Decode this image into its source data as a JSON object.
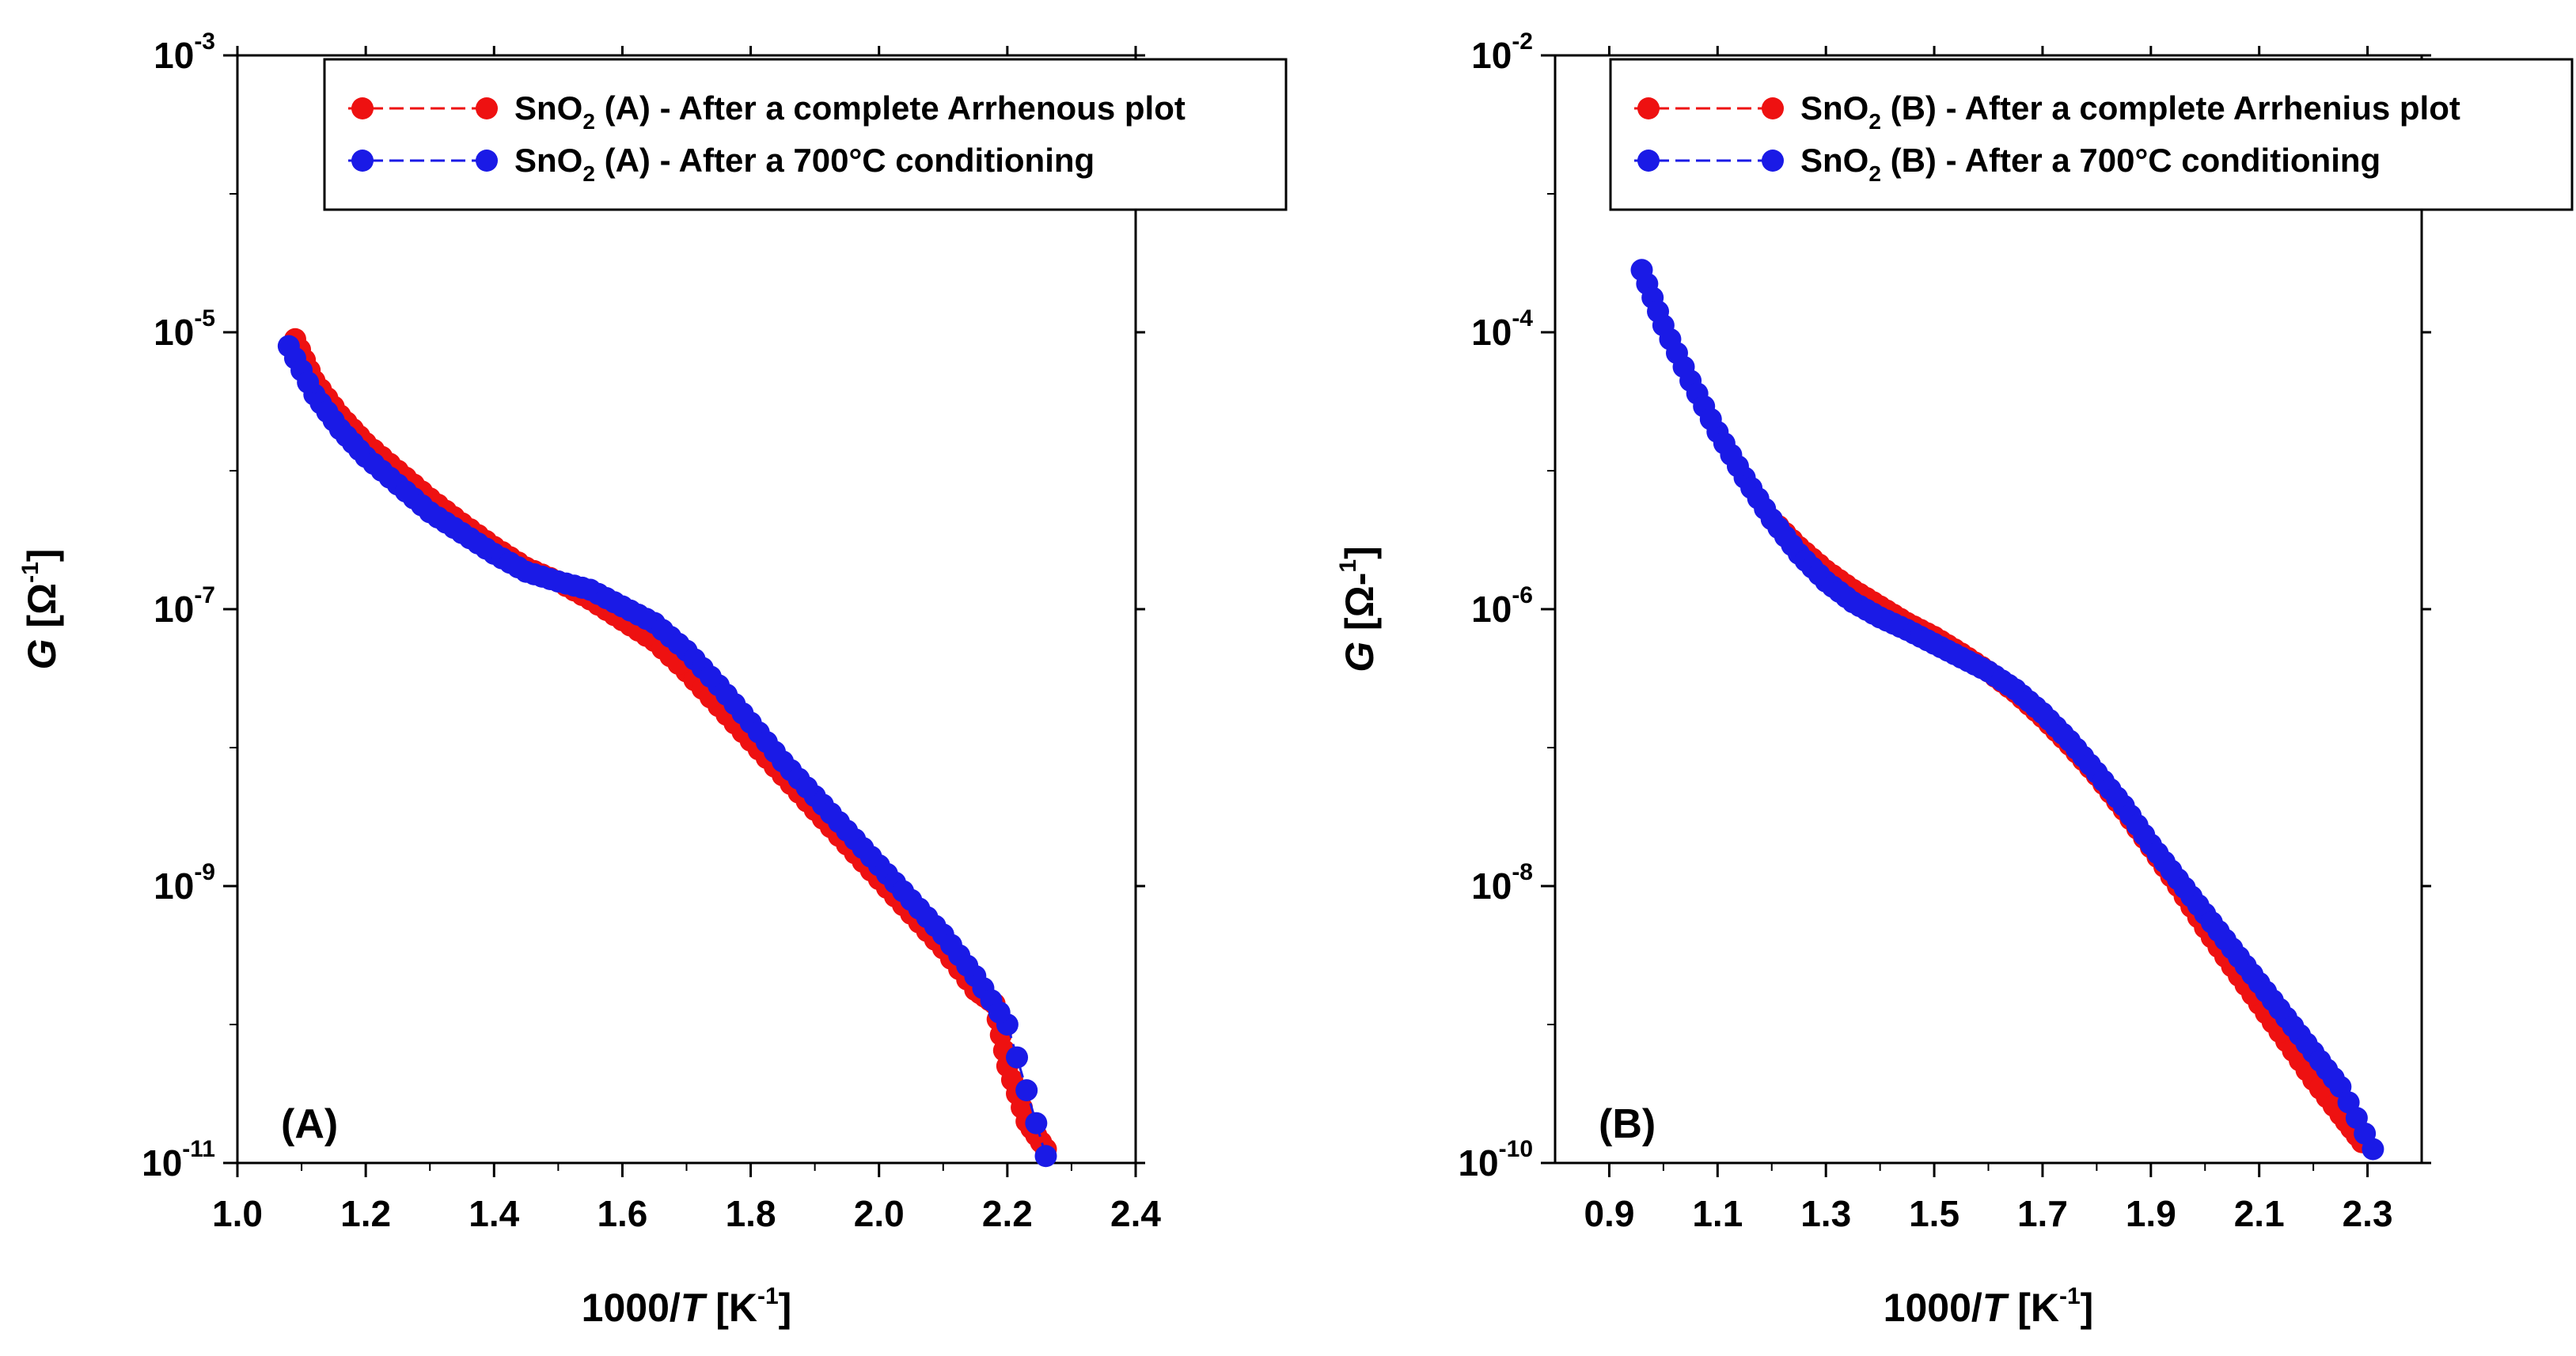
{
  "chart_data": [
    {
      "type": "scatter",
      "panel_label": "(A)",
      "xlabel_prefix": "1000/",
      "xlabel_var": "T",
      "xlabel_unit_open": " [K",
      "xlabel_unit_sup": "-1",
      "xlabel_unit_close": "]",
      "ylabel_var": "G",
      "ylabel_unit_open": " [Ω",
      "ylabel_unit_sup": "-1",
      "ylabel_unit_close": "]",
      "xlim": [
        1.0,
        2.4
      ],
      "ylim_log10": [
        -11,
        -3
      ],
      "x_ticks": [
        1.0,
        1.2,
        1.4,
        1.6,
        1.8,
        2.0,
        2.2,
        2.4
      ],
      "x_tick_labels": [
        "1.0",
        "1.2",
        "1.4",
        "1.6",
        "1.8",
        "2.0",
        "2.2",
        "2.4"
      ],
      "y_ticks_log10": [
        -11,
        -9,
        -7,
        -5,
        -3
      ],
      "y_tick_labels": [
        {
          "base": "10",
          "exp": "-11"
        },
        {
          "base": "10",
          "exp": "-9"
        },
        {
          "base": "10",
          "exp": "-7"
        },
        {
          "base": "10",
          "exp": "-5"
        },
        {
          "base": "10",
          "exp": "-3"
        }
      ],
      "legend_position": "top-right",
      "series": [
        {
          "name_parts": [
            "SnO",
            "2",
            " (A) - After a complete Arrhenous plot"
          ],
          "color": "#ee1111",
          "x": [
            1.09,
            1.12,
            1.16,
            1.2,
            1.25,
            1.3,
            1.35,
            1.4,
            1.45,
            1.5,
            1.55,
            1.6,
            1.65,
            1.7,
            1.75,
            1.8,
            1.85,
            1.9,
            1.95,
            2.0,
            2.05,
            2.1,
            2.15,
            2.18,
            2.2,
            2.23,
            2.26
          ],
          "log10_y": [
            -5.05,
            -5.35,
            -5.6,
            -5.8,
            -6.0,
            -6.2,
            -6.38,
            -6.55,
            -6.7,
            -6.8,
            -6.93,
            -7.08,
            -7.23,
            -7.45,
            -7.7,
            -7.95,
            -8.2,
            -8.45,
            -8.7,
            -8.95,
            -9.2,
            -9.45,
            -9.75,
            -9.85,
            -10.3,
            -10.7,
            -10.9
          ]
        },
        {
          "name_parts": [
            "SnO",
            "2",
            " (A) - After a 700°C conditioning"
          ],
          "color": "#1a1ae6",
          "x": [
            1.08,
            1.12,
            1.16,
            1.2,
            1.25,
            1.3,
            1.35,
            1.4,
            1.45,
            1.5,
            1.55,
            1.6,
            1.65,
            1.7,
            1.75,
            1.8,
            1.85,
            1.9,
            1.95,
            2.0,
            2.05,
            2.1,
            2.15,
            2.2,
            2.26
          ],
          "log10_y": [
            -5.1,
            -5.45,
            -5.7,
            -5.9,
            -6.1,
            -6.3,
            -6.45,
            -6.6,
            -6.73,
            -6.8,
            -6.86,
            -6.98,
            -7.1,
            -7.3,
            -7.55,
            -7.82,
            -8.1,
            -8.35,
            -8.6,
            -8.85,
            -9.1,
            -9.35,
            -9.65,
            -10.0,
            -10.95
          ]
        }
      ]
    },
    {
      "type": "scatter",
      "panel_label": "(B)",
      "xlabel_prefix": "1000/",
      "xlabel_var": "T",
      "xlabel_unit_open": " [K",
      "xlabel_unit_sup": "-1",
      "xlabel_unit_close": "]",
      "ylabel_var": "G",
      "ylabel_unit_open": " [Ω-",
      "ylabel_unit_sup": "1",
      "ylabel_unit_close": "]",
      "xlim": [
        0.8,
        2.4
      ],
      "ylim_log10": [
        -10,
        -2
      ],
      "x_ticks": [
        0.9,
        1.1,
        1.3,
        1.5,
        1.7,
        1.9,
        2.1,
        2.3
      ],
      "x_tick_labels": [
        "0.9",
        "1.1",
        "1.3",
        "1.5",
        "1.7",
        "1.9",
        "2.1",
        "2.3"
      ],
      "y_ticks_log10": [
        -10,
        -8,
        -6,
        -4,
        -2
      ],
      "y_tick_labels": [
        {
          "base": "10",
          "exp": "-10"
        },
        {
          "base": "10",
          "exp": "-8"
        },
        {
          "base": "10",
          "exp": "-6"
        },
        {
          "base": "10",
          "exp": "-4"
        },
        {
          "base": "10",
          "exp": "-2"
        }
      ],
      "legend_position": "top-right",
      "series": [
        {
          "name_parts": [
            "SnO",
            "2",
            " (B) - After a complete Arrhenius plot"
          ],
          "color": "#ee1111",
          "x": [
            1.2,
            1.25,
            1.3,
            1.35,
            1.4,
            1.45,
            1.5,
            1.55,
            1.6,
            1.65,
            1.7,
            1.75,
            1.8,
            1.85,
            1.9,
            1.95,
            2.0,
            2.05,
            2.1,
            2.15,
            2.2,
            2.25,
            2.29
          ],
          "log10_y": [
            -5.35,
            -5.55,
            -5.72,
            -5.86,
            -5.98,
            -6.1,
            -6.2,
            -6.32,
            -6.45,
            -6.6,
            -6.78,
            -6.98,
            -7.2,
            -7.45,
            -7.72,
            -8.0,
            -8.3,
            -8.58,
            -8.85,
            -9.12,
            -9.4,
            -9.65,
            -9.85
          ]
        },
        {
          "name_parts": [
            "SnO",
            "2",
            " (B) - After a 700°C conditioning"
          ],
          "color": "#1a1ae6",
          "x": [
            0.96,
            1.0,
            1.05,
            1.1,
            1.15,
            1.2,
            1.25,
            1.3,
            1.35,
            1.4,
            1.45,
            1.5,
            1.55,
            1.6,
            1.65,
            1.7,
            1.75,
            1.8,
            1.85,
            1.9,
            1.95,
            2.0,
            2.05,
            2.1,
            2.15,
            2.2,
            2.25,
            2.31
          ],
          "log10_y": [
            -3.55,
            -3.95,
            -4.35,
            -4.72,
            -5.05,
            -5.35,
            -5.6,
            -5.8,
            -5.95,
            -6.06,
            -6.15,
            -6.25,
            -6.35,
            -6.45,
            -6.58,
            -6.75,
            -6.95,
            -7.18,
            -7.42,
            -7.7,
            -7.95,
            -8.2,
            -8.45,
            -8.7,
            -8.95,
            -9.2,
            -9.45,
            -9.9
          ]
        }
      ]
    }
  ]
}
